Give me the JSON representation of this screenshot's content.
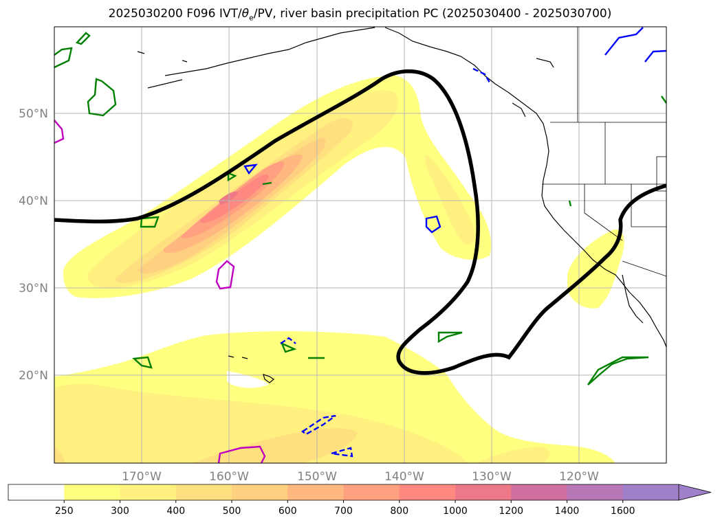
{
  "title": {
    "prefix": "2025030200 F096 IVT/",
    "theta": "θ",
    "theta_sub": "e",
    "suffix": "/PV, river basin precipitation PC (2025030400 - 2025030700)"
  },
  "map": {
    "lon_labels": [
      "170°W",
      "160°W",
      "150°W",
      "140°W",
      "130°W",
      "120°W"
    ],
    "lat_labels": [
      "50°N",
      "40°N",
      "30°N",
      "20°N"
    ],
    "grid_color": "#b4b4b4",
    "label_color": "#808080"
  },
  "colorbar": {
    "ticks": [
      "250",
      "300",
      "400",
      "500",
      "600",
      "700",
      "800",
      "1000",
      "1200",
      "1400",
      "1600"
    ],
    "colors": [
      "#ffffff",
      "#ffff80",
      "#fff080",
      "#ffe080",
      "#ffd080",
      "#ffb880",
      "#ffa080",
      "#ff8880",
      "#ec7888",
      "#d070a0",
      "#b878b8",
      "#a080c8"
    ],
    "extend": "max"
  },
  "contour_colors": {
    "pv_line": "#000000",
    "theta_e_low": "#008000",
    "theta_e_cold": "#0000ff",
    "theta_e_high": "#c000c0"
  }
}
